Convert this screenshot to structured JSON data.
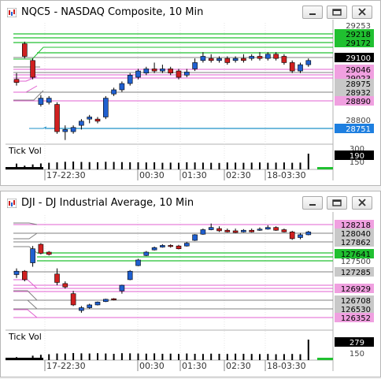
{
  "windows": [
    {
      "title": "NQC5 - NASDAQ Composite, 10 Min",
      "buttons": {
        "minimize": "minimize-icon",
        "maximize": "maximize-icon",
        "close": "close-icon"
      },
      "price_labels": [
        {
          "text": "29253",
          "kind": "plain"
        },
        {
          "text": "29218",
          "kind": "green"
        },
        {
          "text": "29172",
          "kind": "green"
        },
        {
          "text": "29100",
          "kind": "black"
        },
        {
          "text": "29046",
          "kind": "pink"
        },
        {
          "text": "29023",
          "kind": "pink"
        },
        {
          "text": "28975",
          "kind": "gray"
        },
        {
          "text": "28932",
          "kind": "gray"
        },
        {
          "text": "28890",
          "kind": "pink"
        },
        {
          "text": "28800",
          "kind": "plain"
        },
        {
          "text": "28751",
          "kind": "blue"
        }
      ],
      "volume_label": "Tick Vol",
      "volume_values": [
        {
          "text": "300",
          "kind": "plain"
        },
        {
          "text": "190",
          "kind": "black"
        },
        {
          "text": "150",
          "kind": "plain"
        }
      ],
      "time_labels": [
        "17-22:30",
        "00:30",
        "01:30",
        "02:30",
        "18-03:30"
      ]
    },
    {
      "title": "DJI - DJ Industrial Average, 10 Min",
      "buttons": {
        "minimize": "minimize-icon",
        "maximize": "maximize-icon",
        "close": "close-icon"
      },
      "price_labels": [
        {
          "text": "128218",
          "kind": "pink"
        },
        {
          "text": "128040",
          "kind": "gray"
        },
        {
          "text": "127862",
          "kind": "gray"
        },
        {
          "text": "127641",
          "kind": "green"
        },
        {
          "text": "127500",
          "kind": "plain"
        },
        {
          "text": "127285",
          "kind": "gray"
        },
        {
          "text": "126929",
          "kind": "pink"
        },
        {
          "text": "126708",
          "kind": "gray"
        },
        {
          "text": "126530",
          "kind": "gray"
        },
        {
          "text": "126352",
          "kind": "pink"
        }
      ],
      "volume_label": "Tick Vol",
      "volume_values": [
        {
          "text": "279",
          "kind": "black"
        },
        {
          "text": "150",
          "kind": "plain"
        }
      ],
      "time_labels": [
        "17-22:30",
        "00:30",
        "01:30",
        "02:30",
        "18-03:30"
      ]
    }
  ],
  "chart_data": [
    {
      "type": "candlestick",
      "title": "NQC5 - NASDAQ Composite, 10 Min",
      "ylim": [
        28700,
        29280
      ],
      "x_ticks": [
        "17-22:30",
        "00:30",
        "01:30",
        "02:30",
        "18-03:30"
      ],
      "candles": [
        {
          "o": 29010,
          "c": 28995,
          "h": 29040,
          "l": 28980
        },
        {
          "o": 29180,
          "c": 29120,
          "h": 29190,
          "l": 29110
        },
        {
          "o": 29100,
          "c": 29020,
          "h": 29110,
          "l": 29010
        },
        {
          "o": 28890,
          "c": 28920,
          "h": 28935,
          "l": 28880
        },
        {
          "o": 28900,
          "c": 28920,
          "h": 28930,
          "l": 28890
        },
        {
          "o": 28890,
          "c": 28760,
          "h": 28900,
          "l": 28750
        },
        {
          "o": 28760,
          "c": 28770,
          "h": 28790,
          "l": 28720
        },
        {
          "o": 28760,
          "c": 28780,
          "h": 28790,
          "l": 28750
        },
        {
          "o": 28790,
          "c": 28810,
          "h": 28820,
          "l": 28770
        },
        {
          "o": 28820,
          "c": 28830,
          "h": 28840,
          "l": 28800
        },
        {
          "o": 28820,
          "c": 28810,
          "h": 28830,
          "l": 28800
        },
        {
          "o": 28830,
          "c": 28920,
          "h": 28930,
          "l": 28820
        },
        {
          "o": 28940,
          "c": 28960,
          "h": 28970,
          "l": 28930
        },
        {
          "o": 28960,
          "c": 28990,
          "h": 29000,
          "l": 28950
        },
        {
          "o": 28990,
          "c": 29030,
          "h": 29040,
          "l": 28980
        },
        {
          "o": 29020,
          "c": 29050,
          "h": 29060,
          "l": 29010
        },
        {
          "o": 29040,
          "c": 29060,
          "h": 29070,
          "l": 29030
        },
        {
          "o": 29060,
          "c": 29050,
          "h": 29090,
          "l": 29040
        },
        {
          "o": 29050,
          "c": 29060,
          "h": 29080,
          "l": 29040
        },
        {
          "o": 29060,
          "c": 29040,
          "h": 29070,
          "l": 29030
        },
        {
          "o": 29050,
          "c": 29020,
          "h": 29060,
          "l": 29010
        },
        {
          "o": 29030,
          "c": 29045,
          "h": 29060,
          "l": 29020
        },
        {
          "o": 29060,
          "c": 29090,
          "h": 29110,
          "l": 29050
        },
        {
          "o": 29100,
          "c": 29120,
          "h": 29140,
          "l": 29090
        },
        {
          "o": 29110,
          "c": 29100,
          "h": 29130,
          "l": 29090
        },
        {
          "o": 29100,
          "c": 29110,
          "h": 29120,
          "l": 29090
        },
        {
          "o": 29110,
          "c": 29090,
          "h": 29120,
          "l": 29080
        },
        {
          "o": 29100,
          "c": 29110,
          "h": 29120,
          "l": 29090
        },
        {
          "o": 29110,
          "c": 29100,
          "h": 29130,
          "l": 29090
        },
        {
          "o": 29110,
          "c": 29120,
          "h": 29130,
          "l": 29100
        },
        {
          "o": 29120,
          "c": 29110,
          "h": 29140,
          "l": 29100
        },
        {
          "o": 29110,
          "c": 29130,
          "h": 29140,
          "l": 29100
        },
        {
          "o": 29130,
          "c": 29110,
          "h": 29140,
          "l": 29100
        },
        {
          "o": 29120,
          "c": 29090,
          "h": 29130,
          "l": 29080
        },
        {
          "o": 29090,
          "c": 29050,
          "h": 29100,
          "l": 29040
        },
        {
          "o": 29050,
          "c": 29080,
          "h": 29090,
          "l": 29040
        },
        {
          "o": 29080,
          "c": 29100,
          "h": 29110,
          "l": 29070
        }
      ],
      "volume": [
        70,
        45,
        60,
        72,
        80,
        85,
        92,
        95,
        90,
        88,
        86,
        92,
        90,
        88,
        86,
        86,
        84,
        86,
        80,
        82,
        80,
        86,
        84,
        82,
        80,
        78,
        84,
        82,
        80,
        82,
        84,
        80,
        82,
        84,
        80,
        82,
        190
      ]
    },
    {
      "type": "candlestick",
      "title": "DJI - DJ Industrial Average, 10 Min",
      "ylim": [
        126250,
        128300
      ],
      "x_ticks": [
        "17-22:30",
        "00:30",
        "01:30",
        "02:30",
        "18-03:30"
      ],
      "candles": [
        {
          "o": 127240,
          "c": 127300,
          "h": 127350,
          "l": 127180
        },
        {
          "o": 127300,
          "c": 127150,
          "h": 127320,
          "l": 127120
        },
        {
          "o": 127450,
          "c": 127700,
          "h": 127750,
          "l": 127380
        },
        {
          "o": 127780,
          "c": 127620,
          "h": 127800,
          "l": 127600
        },
        {
          "o": 127640,
          "c": 127600,
          "h": 127660,
          "l": 127580
        },
        {
          "o": 127250,
          "c": 127100,
          "h": 127350,
          "l": 127050
        },
        {
          "o": 127080,
          "c": 127020,
          "h": 127120,
          "l": 126990
        },
        {
          "o": 126900,
          "c": 126700,
          "h": 126950,
          "l": 126680
        },
        {
          "o": 126600,
          "c": 126650,
          "h": 126680,
          "l": 126560
        },
        {
          "o": 126650,
          "c": 126700,
          "h": 126720,
          "l": 126630
        },
        {
          "o": 126700,
          "c": 126750,
          "h": 126760,
          "l": 126690
        },
        {
          "o": 126760,
          "c": 126800,
          "h": 126810,
          "l": 126750
        },
        {
          "o": 126810,
          "c": 126790,
          "h": 126820,
          "l": 126780
        },
        {
          "o": 126950,
          "c": 127050,
          "h": 127060,
          "l": 126900
        },
        {
          "o": 127150,
          "c": 127300,
          "h": 127320,
          "l": 127140
        },
        {
          "o": 127400,
          "c": 127500,
          "h": 127520,
          "l": 127390
        },
        {
          "o": 127580,
          "c": 127640,
          "h": 127660,
          "l": 127570
        },
        {
          "o": 127680,
          "c": 127720,
          "h": 127740,
          "l": 127670
        },
        {
          "o": 127730,
          "c": 127760,
          "h": 127780,
          "l": 127720
        },
        {
          "o": 127760,
          "c": 127740,
          "h": 127780,
          "l": 127720
        },
        {
          "o": 127750,
          "c": 127700,
          "h": 127770,
          "l": 127690
        },
        {
          "o": 127750,
          "c": 127800,
          "h": 127820,
          "l": 127740
        },
        {
          "o": 127850,
          "c": 127950,
          "h": 127960,
          "l": 127840
        },
        {
          "o": 127960,
          "c": 128040,
          "h": 128060,
          "l": 127950
        },
        {
          "o": 128040,
          "c": 128080,
          "h": 128150,
          "l": 128030
        },
        {
          "o": 128060,
          "c": 128020,
          "h": 128100,
          "l": 128000
        },
        {
          "o": 128030,
          "c": 128000,
          "h": 128060,
          "l": 127990
        },
        {
          "o": 128020,
          "c": 127990,
          "h": 128060,
          "l": 127980
        },
        {
          "o": 128000,
          "c": 128030,
          "h": 128050,
          "l": 127990
        },
        {
          "o": 128030,
          "c": 128000,
          "h": 128060,
          "l": 127990
        },
        {
          "o": 128030,
          "c": 128050,
          "h": 128080,
          "l": 128020
        },
        {
          "o": 128050,
          "c": 128080,
          "h": 128120,
          "l": 128040
        },
        {
          "o": 128080,
          "c": 128030,
          "h": 128100,
          "l": 128020
        },
        {
          "o": 128040,
          "c": 128000,
          "h": 128060,
          "l": 127990
        },
        {
          "o": 128000,
          "c": 127880,
          "h": 128020,
          "l": 127860
        },
        {
          "o": 127900,
          "c": 127950,
          "h": 127980,
          "l": 127870
        },
        {
          "o": 127950,
          "c": 128000,
          "h": 128020,
          "l": 127940
        }
      ],
      "volume": [
        40,
        30,
        60,
        72,
        80,
        90,
        90,
        96,
        92,
        90,
        94,
        90,
        86,
        94,
        92,
        90,
        88,
        92,
        86,
        88,
        84,
        90,
        86,
        84,
        88,
        86,
        84,
        88,
        86,
        84,
        82,
        84,
        80,
        82,
        84,
        80,
        279
      ]
    }
  ]
}
